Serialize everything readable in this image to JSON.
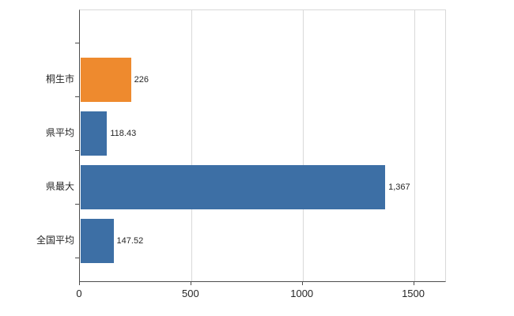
{
  "chart_data": {
    "type": "bar",
    "orientation": "horizontal",
    "title": "",
    "xlabel": "",
    "ylabel": "",
    "categories": [
      "桐生市",
      "県平均",
      "県最大",
      "全国平均"
    ],
    "values": [
      226,
      118.43,
      1367,
      147.52
    ],
    "value_labels": [
      "226",
      "118.43",
      "1,367",
      "147.52"
    ],
    "bar_colors": [
      "#ee8a2e",
      "#3d6fa5",
      "#3d6fa5",
      "#3d6fa5"
    ],
    "x_ticks": [
      0,
      500,
      1000,
      1500
    ],
    "x_tick_labels": [
      "0",
      "500",
      "1000",
      "1500"
    ],
    "xlim": [
      0,
      1640
    ],
    "grid": true,
    "legend": "none",
    "colors": {
      "highlight_bar": "#ee8a2e",
      "default_bar": "#3d6fa5",
      "gridline": "#d9d9d9",
      "axis_line": "#4d4d4d",
      "text": "#262626",
      "background": "#ffffff"
    }
  }
}
